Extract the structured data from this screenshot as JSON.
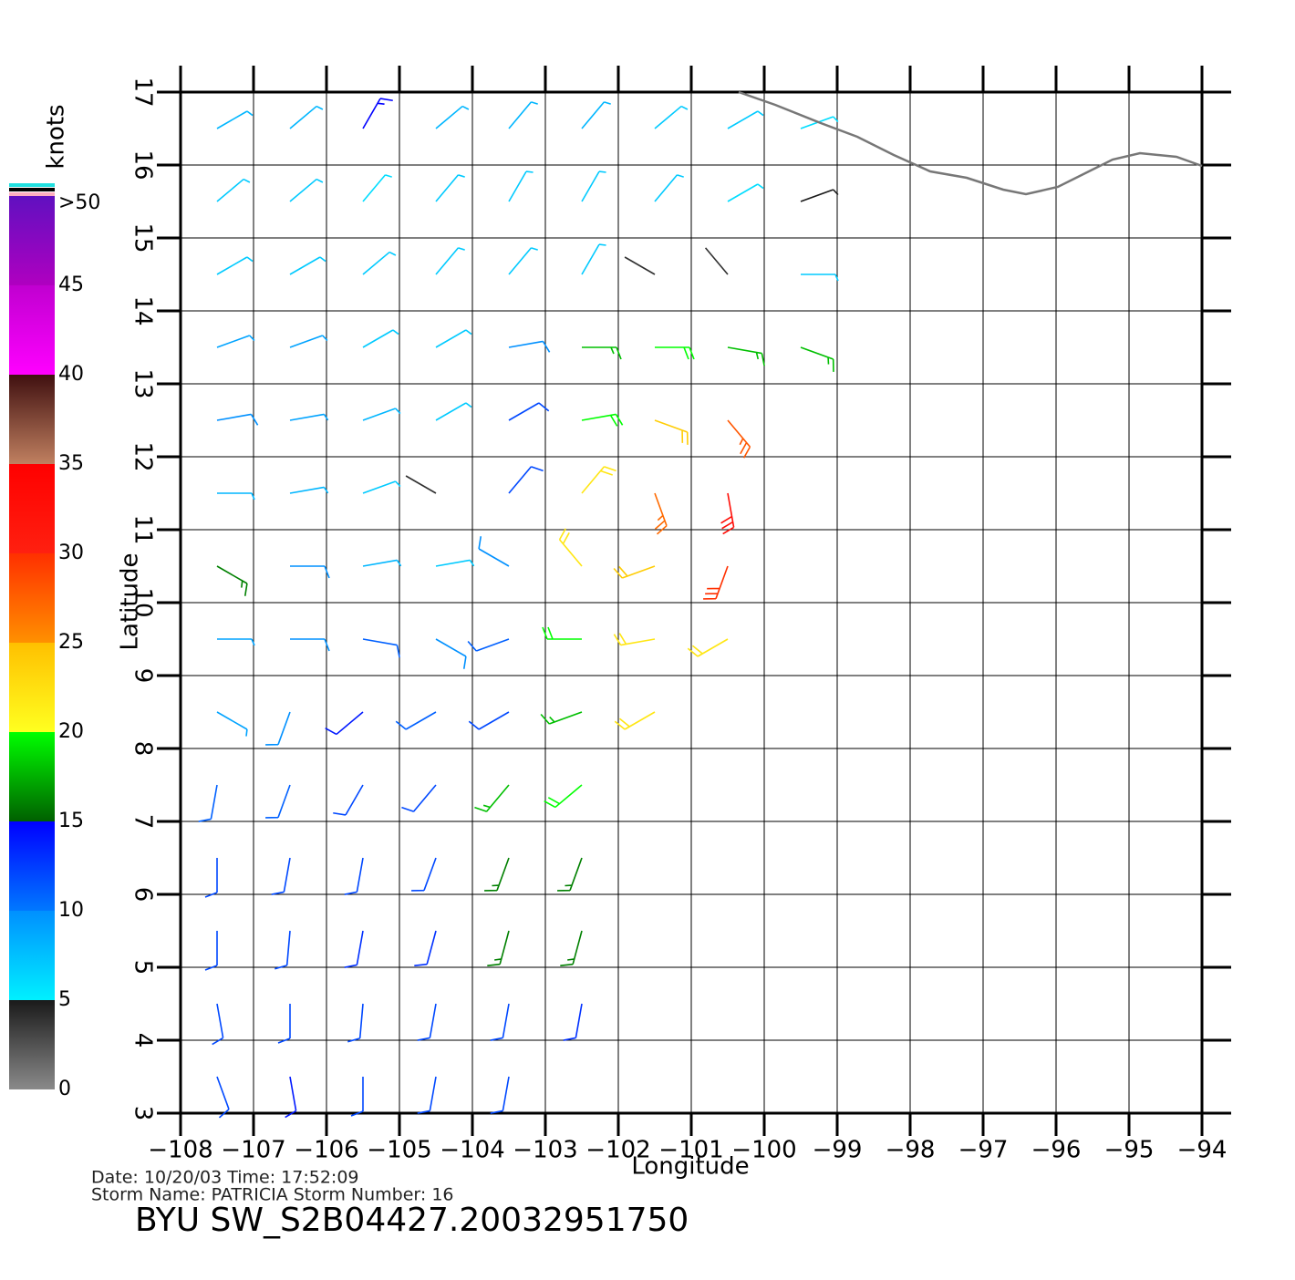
{
  "chart_data": {
    "type": "wind-barbs",
    "title": "BYU  SW_S2B04427.20032951750",
    "date_line": "Date:  10/20/03   Time:  17:52:09",
    "storm_line": "Storm  Name:  PATRICIA    Storm  Number:  16",
    "xlabel": "Longitude",
    "ylabel": "Latitude",
    "xlim": [
      -108,
      -94
    ],
    "ylim": [
      3,
      17
    ],
    "xticks": [
      {
        "value": -108,
        "label": "−108"
      },
      {
        "value": -107,
        "label": "−107"
      },
      {
        "value": -106,
        "label": "−106"
      },
      {
        "value": -105,
        "label": "−105"
      },
      {
        "value": -104,
        "label": "−104"
      },
      {
        "value": -103,
        "label": "−103"
      },
      {
        "value": -102,
        "label": "−102"
      },
      {
        "value": -101,
        "label": "−101"
      },
      {
        "value": -100,
        "label": "−100"
      },
      {
        "value": -99,
        "label": "−99"
      },
      {
        "value": -98,
        "label": "−98"
      },
      {
        "value": -97,
        "label": "−97"
      },
      {
        "value": -96,
        "label": "−96"
      },
      {
        "value": -95,
        "label": "−95"
      },
      {
        "value": -94,
        "label": "−94"
      }
    ],
    "yticks": [
      3,
      4,
      5,
      6,
      7,
      8,
      9,
      10,
      11,
      12,
      13,
      14,
      15,
      16,
      17
    ],
    "grid": true,
    "colorbar": {
      "title": "knots",
      "ticks": [
        0,
        5,
        10,
        15,
        20,
        25,
        30,
        35,
        40,
        45,
        {
          "value": 50,
          "label": ">50"
        }
      ],
      "colors": [
        [
          "#8a8a8a",
          "#1a1a1a"
        ],
        [
          "#00f0ff",
          "#0090ff"
        ],
        [
          "#0078ff",
          "#0000ff"
        ],
        [
          "#006000",
          "#00ff00"
        ],
        [
          "#ffff20",
          "#ffc000"
        ],
        [
          "#ff9000",
          "#ff3000"
        ],
        [
          "#ff2010",
          "#ff0000"
        ],
        [
          "#c08060",
          "#401010"
        ],
        [
          "#ff00ff",
          "#c000d0"
        ],
        [
          "#b000c0",
          "#6010c0"
        ]
      ]
    },
    "wind": {
      "lon": [
        -107.5,
        -106.5,
        -105.5,
        -104.5,
        -103.5,
        -102.5,
        -101.5,
        -100.5,
        -99.5,
        -107.5,
        -106.5,
        -105.5,
        -104.5,
        -103.5,
        -102.5,
        -101.5,
        -100.5,
        -99.5,
        -107.5,
        -106.5,
        -105.5,
        -104.5,
        -103.5,
        -102.5,
        -101.5,
        -100.5,
        -99.5,
        -107.5,
        -106.5,
        -105.5,
        -104.5,
        -103.5,
        -102.5,
        -101.5,
        -100.5,
        -99.5,
        -107.5,
        -106.5,
        -105.5,
        -104.5,
        -103.5,
        -102.5,
        -101.5,
        -100.5,
        -107.5,
        -106.5,
        -105.5,
        -104.5,
        -103.5,
        -102.5,
        -101.5,
        -100.5,
        -107.5,
        -106.5,
        -105.5,
        -104.5,
        -103.5,
        -102.5,
        -101.5,
        -100.5,
        -107.5,
        -106.5,
        -105.5,
        -104.5,
        -103.5,
        -102.5,
        -101.5,
        -100.5,
        -107.5,
        -106.5,
        -105.5,
        -104.5,
        -103.5,
        -102.5,
        -101.5,
        -107.5,
        -106.5,
        -105.5,
        -104.5,
        -103.5,
        -102.5,
        -107.5,
        -106.5,
        -105.5,
        -104.5,
        -103.5,
        -102.5,
        -107.5,
        -106.5,
        -105.5,
        -104.5,
        -103.5,
        -102.5,
        -107.5,
        -106.5,
        -105.5,
        -104.5,
        -103.5,
        -102.5,
        -107.5,
        -106.5,
        -105.5,
        -104.5,
        -103.5
      ],
      "lat": [
        16.5,
        16.5,
        16.5,
        16.5,
        16.5,
        16.5,
        16.5,
        16.5,
        16.5,
        15.5,
        15.5,
        15.5,
        15.5,
        15.5,
        15.5,
        15.5,
        15.5,
        15.5,
        14.5,
        14.5,
        14.5,
        14.5,
        14.5,
        14.5,
        14.5,
        14.5,
        14.5,
        13.5,
        13.5,
        13.5,
        13.5,
        13.5,
        13.5,
        13.5,
        13.5,
        13.5,
        12.5,
        12.5,
        12.5,
        12.5,
        12.5,
        12.5,
        12.5,
        12.5,
        11.5,
        11.5,
        11.5,
        11.5,
        11.5,
        11.5,
        11.5,
        11.5,
        10.5,
        10.5,
        10.5,
        10.5,
        10.5,
        10.5,
        10.5,
        10.5,
        9.5,
        9.5,
        9.5,
        9.5,
        9.5,
        9.5,
        9.5,
        9.5,
        8.5,
        8.5,
        8.5,
        8.5,
        8.5,
        8.5,
        8.5,
        7.5,
        7.5,
        7.5,
        7.5,
        7.5,
        7.5,
        6.5,
        6.5,
        6.5,
        6.5,
        6.5,
        6.5,
        5.5,
        5.5,
        5.5,
        5.5,
        5.5,
        5.5,
        4.5,
        4.5,
        4.5,
        4.5,
        4.5,
        4.5,
        3.5,
        3.5,
        3.5,
        3.5,
        3.5
      ],
      "speed": [
        8,
        8,
        15,
        8,
        8,
        8,
        7,
        7,
        6,
        7,
        7,
        6,
        7,
        7,
        7,
        7,
        6,
        5,
        7,
        7,
        7,
        7,
        7,
        7,
        4,
        4,
        7,
        9,
        9,
        7,
        7,
        10,
        18,
        20,
        18,
        18,
        10,
        9,
        8,
        7,
        12,
        20,
        24,
        28,
        8,
        8,
        7,
        4,
        12,
        22,
        27,
        33,
        16,
        10,
        8,
        7,
        10,
        22,
        24,
        30,
        9,
        10,
        11,
        10,
        11,
        20,
        22,
        22,
        9,
        10,
        14,
        11,
        12,
        18,
        22,
        11,
        11,
        12,
        12,
        18,
        20,
        12,
        12,
        12,
        12,
        16,
        16,
        12,
        12,
        13,
        13,
        16,
        16,
        12,
        12,
        12,
        12,
        12,
        13,
        12,
        14,
        12,
        12,
        12
      ],
      "dir": [
        60,
        50,
        30,
        50,
        40,
        40,
        50,
        60,
        70,
        50,
        50,
        40,
        40,
        30,
        30,
        40,
        60,
        70,
        60,
        60,
        50,
        40,
        40,
        30,
        300,
        320,
        90,
        70,
        70,
        60,
        60,
        80,
        90,
        90,
        100,
        110,
        80,
        80,
        70,
        60,
        60,
        80,
        110,
        140,
        90,
        80,
        70,
        300,
        40,
        40,
        160,
        170,
        120,
        90,
        80,
        80,
        300,
        320,
        250,
        200,
        90,
        90,
        100,
        120,
        250,
        270,
        260,
        240,
        120,
        200,
        230,
        240,
        240,
        250,
        240,
        190,
        200,
        210,
        220,
        220,
        230,
        180,
        190,
        190,
        200,
        200,
        200,
        180,
        185,
        190,
        195,
        195,
        195,
        170,
        180,
        185,
        190,
        190,
        190,
        160,
        170,
        180,
        190,
        190
      ]
    }
  }
}
